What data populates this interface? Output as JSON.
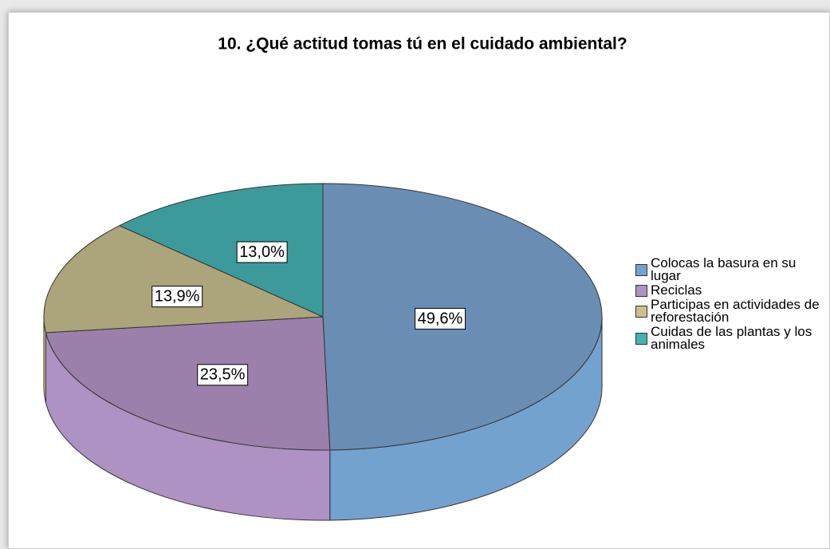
{
  "chart_data": {
    "type": "pie",
    "title": "10. ¿Qué actitud tomas tú en el cuidado ambiental?",
    "categories": [
      "Colocas la basura en su lugar",
      "Reciclas",
      "Participas en actividades de reforestación",
      "Cuidas de las plantas y los animales"
    ],
    "values": [
      49.6,
      23.5,
      13.9,
      13.0
    ],
    "value_labels": [
      "49,6%",
      "23,5%",
      "13,9%",
      "13,0%"
    ],
    "colors": [
      "#6a8db3",
      "#9a80aa",
      "#aca47a",
      "#3d9a9b"
    ],
    "side_colors": [
      "#74a2cf",
      "#ae92c3",
      "#c9c08e",
      "#45b2b2"
    ],
    "legend": "right"
  }
}
